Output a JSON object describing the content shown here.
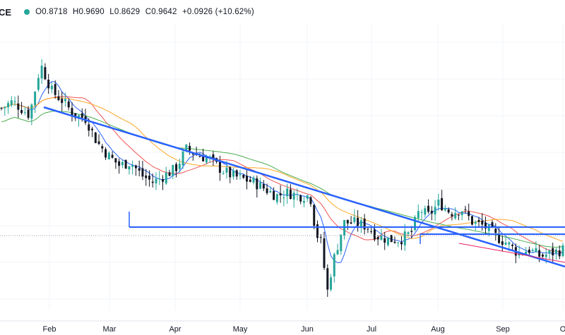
{
  "header": {
    "symbol_fragment": "CE",
    "status_color": "#26a69a",
    "open": "O0.8718",
    "high": "H0.9690",
    "low": "L0.8629",
    "close": "C0.9642",
    "change": "+0.0926 (+10.62%)"
  },
  "chart_data": {
    "type": "candlestick",
    "x_tick_labels": [
      "Feb",
      "Mar",
      "Apr",
      "May",
      "Jun",
      "Jul",
      "Aug",
      "Sep",
      "O"
    ],
    "colors": {
      "up": "#26a69a",
      "down": "#131722",
      "ma_fast": "#2962ff",
      "ma_mid": "#ef5350",
      "ma_slow": "#ffa726",
      "ma_long": "#4caf50",
      "trendlines": "#2962ff",
      "ma_magenta": "#e91e63"
    },
    "price_path": [
      [
        0,
        1.0
      ],
      [
        0.02,
        1.02
      ],
      [
        0.05,
        0.98
      ],
      [
        0.07,
        1.13
      ],
      [
        0.09,
        1.05
      ],
      [
        0.11,
        1.02
      ],
      [
        0.13,
        0.98
      ],
      [
        0.15,
        0.97
      ],
      [
        0.17,
        0.9
      ],
      [
        0.19,
        0.86
      ],
      [
        0.21,
        0.83
      ],
      [
        0.23,
        0.84
      ],
      [
        0.25,
        0.8
      ],
      [
        0.27,
        0.78
      ],
      [
        0.29,
        0.8
      ],
      [
        0.31,
        0.82
      ],
      [
        0.33,
        0.88
      ],
      [
        0.35,
        0.86
      ],
      [
        0.37,
        0.85
      ],
      [
        0.39,
        0.82
      ],
      [
        0.41,
        0.8
      ],
      [
        0.43,
        0.79
      ],
      [
        0.45,
        0.78
      ],
      [
        0.47,
        0.76
      ],
      [
        0.49,
        0.74
      ],
      [
        0.51,
        0.75
      ],
      [
        0.53,
        0.74
      ],
      [
        0.55,
        0.74
      ],
      [
        0.56,
        0.63
      ],
      [
        0.57,
        0.6
      ],
      [
        0.58,
        0.45
      ],
      [
        0.59,
        0.54
      ],
      [
        0.61,
        0.66
      ],
      [
        0.63,
        0.66
      ],
      [
        0.65,
        0.65
      ],
      [
        0.67,
        0.62
      ],
      [
        0.69,
        0.61
      ],
      [
        0.71,
        0.61
      ],
      [
        0.73,
        0.63
      ],
      [
        0.745,
        0.7
      ],
      [
        0.76,
        0.68
      ],
      [
        0.78,
        0.72
      ],
      [
        0.8,
        0.69
      ],
      [
        0.82,
        0.7
      ],
      [
        0.84,
        0.66
      ],
      [
        0.86,
        0.65
      ],
      [
        0.88,
        0.62
      ],
      [
        0.9,
        0.6
      ],
      [
        0.92,
        0.57
      ],
      [
        0.94,
        0.58
      ],
      [
        0.96,
        0.56
      ],
      [
        0.98,
        0.57
      ],
      [
        1.0,
        0.58
      ]
    ]
  }
}
